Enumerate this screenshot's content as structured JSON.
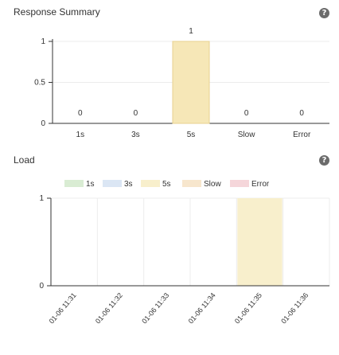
{
  "summary_panel": {
    "title": "Response Summary",
    "help_icon": "question-circle-icon"
  },
  "load_panel": {
    "title": "Load",
    "help_icon": "question-circle-icon"
  },
  "chart_data": [
    {
      "type": "bar",
      "categories": [
        "1s",
        "3s",
        "5s",
        "Slow",
        "Error"
      ],
      "values": [
        0,
        0,
        1,
        0,
        0
      ],
      "data_labels": [
        "0",
        "0",
        "1",
        "0",
        "0"
      ],
      "yticks": [
        "0",
        "0.5",
        "1"
      ],
      "ylim": [
        0,
        1
      ],
      "grid": true,
      "colors": {
        "bar": "#f6e7b7",
        "bar_border": "#e8d28f"
      }
    },
    {
      "type": "bar",
      "categories": [
        "01-06 11:31",
        "01-06 11:32",
        "01-06 11:33",
        "01-06 11:34",
        "01-06 11:35",
        "01-06 11:36"
      ],
      "series": [
        {
          "name": "1s",
          "color": "#d9ecd3",
          "values": [
            0,
            0,
            0,
            0,
            0,
            0
          ]
        },
        {
          "name": "3s",
          "color": "#dbe6f4",
          "values": [
            0,
            0,
            0,
            0,
            0,
            0
          ]
        },
        {
          "name": "5s",
          "color": "#f8efcc",
          "values": [
            0,
            0,
            0,
            0,
            1,
            0
          ]
        },
        {
          "name": "Slow",
          "color": "#f7e6cd",
          "values": [
            0,
            0,
            0,
            0,
            0,
            0
          ]
        },
        {
          "name": "Error",
          "color": "#f5d6da",
          "values": [
            0,
            0,
            0,
            0,
            0,
            0
          ]
        }
      ],
      "yticks": [
        "0",
        "1"
      ],
      "ylim": [
        0,
        1
      ],
      "grid": true,
      "legend_position": "top-center"
    }
  ]
}
